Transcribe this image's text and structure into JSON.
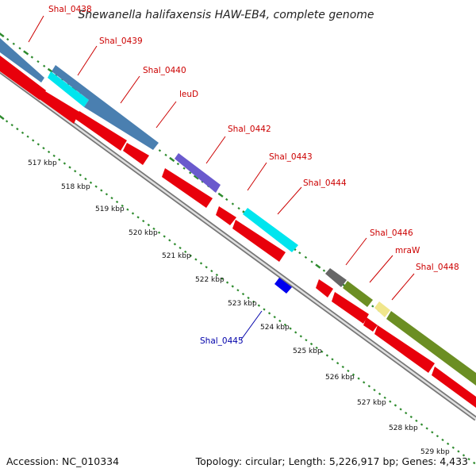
{
  "title": "Shewanella halifaxensis HAW-EB4, complete genome",
  "footer": {
    "accession": "Accession: NC_010334",
    "summary": "Topology: circular; Length: 5,226,917 bp; Genes: 4,433"
  },
  "colors": {
    "forward_cds": "#4a7fb0",
    "reverse_cds": "#e8000b",
    "label_red": "#cc0000",
    "label_blue": "#0000aa",
    "backbone": "#888888",
    "ticks": "#2e8b2e"
  },
  "gene_labels": [
    {
      "id": "Shal_0438",
      "text": "Shal_0438",
      "color": "#cc0000"
    },
    {
      "id": "Shal_0439",
      "text": "Shal_0439",
      "color": "#cc0000"
    },
    {
      "id": "Shal_0440",
      "text": "Shal_0440",
      "color": "#cc0000"
    },
    {
      "id": "leuD",
      "text": "leuD",
      "color": "#cc0000"
    },
    {
      "id": "Shal_0442",
      "text": "Shal_0442",
      "color": "#cc0000"
    },
    {
      "id": "Shal_0443",
      "text": "Shal_0443",
      "color": "#cc0000"
    },
    {
      "id": "Shal_0444",
      "text": "Shal_0444",
      "color": "#cc0000"
    },
    {
      "id": "Shal_0446",
      "text": "Shal_0446",
      "color": "#cc0000"
    },
    {
      "id": "mraW",
      "text": "mraW",
      "color": "#cc0000"
    },
    {
      "id": "Shal_0448",
      "text": "Shal_0448",
      "color": "#cc0000"
    },
    {
      "id": "Shal_0445",
      "text": "Shal_0445",
      "color": "#0000aa"
    }
  ],
  "kbp_labels": [
    "517 kbp",
    "518 kbp",
    "519 kbp",
    "520 kbp",
    "521 kbp",
    "522 kbp",
    "523 kbp",
    "524 kbp",
    "525 kbp",
    "526 kbp",
    "527 kbp",
    "528 kbp",
    "529 kbp"
  ]
}
